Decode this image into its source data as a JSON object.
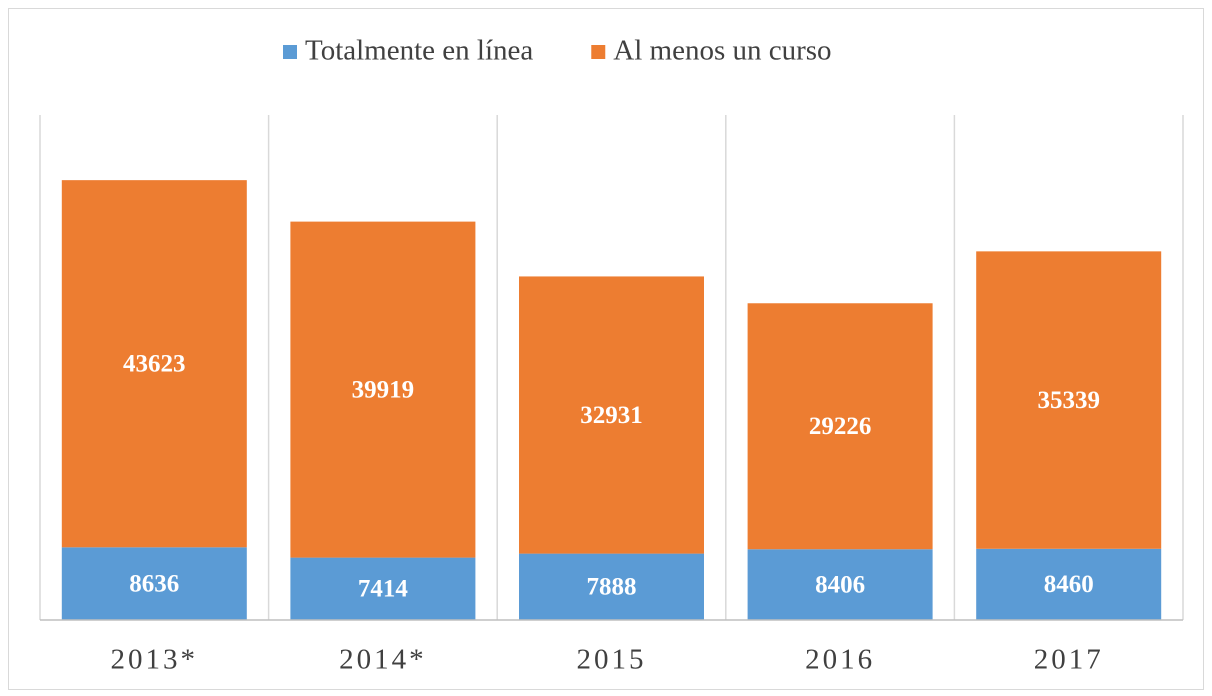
{
  "chart_data": {
    "type": "bar",
    "stacked": true,
    "categories": [
      "2013*",
      "2014*",
      "2015",
      "2016",
      "2017"
    ],
    "series": [
      {
        "name": "Totalmente en línea",
        "color": "#5b9bd5",
        "values": [
          8636,
          7414,
          7888,
          8406,
          8460
        ]
      },
      {
        "name": "Al menos un curso",
        "color": "#ed7d31",
        "values": [
          43623,
          39919,
          32931,
          29226,
          35339
        ]
      }
    ],
    "ylim": [
      0,
      60000
    ],
    "legend": "top"
  }
}
